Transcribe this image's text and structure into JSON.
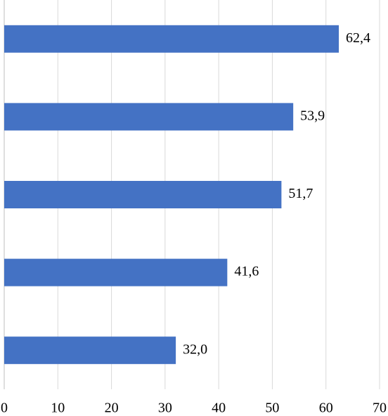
{
  "chart_data": {
    "type": "hbar",
    "categories": [
      null,
      null,
      null,
      null,
      null
    ],
    "values": [
      62.4,
      53.9,
      51.7,
      41.6,
      32.0
    ],
    "value_labels": [
      "62,4",
      "53,9",
      "51,7",
      "41,6",
      "32,0"
    ],
    "color": "#4472c4",
    "xlim": [
      0,
      70
    ],
    "xticks": [
      0,
      10,
      20,
      30,
      40,
      50,
      60,
      70
    ],
    "grid": true
  }
}
